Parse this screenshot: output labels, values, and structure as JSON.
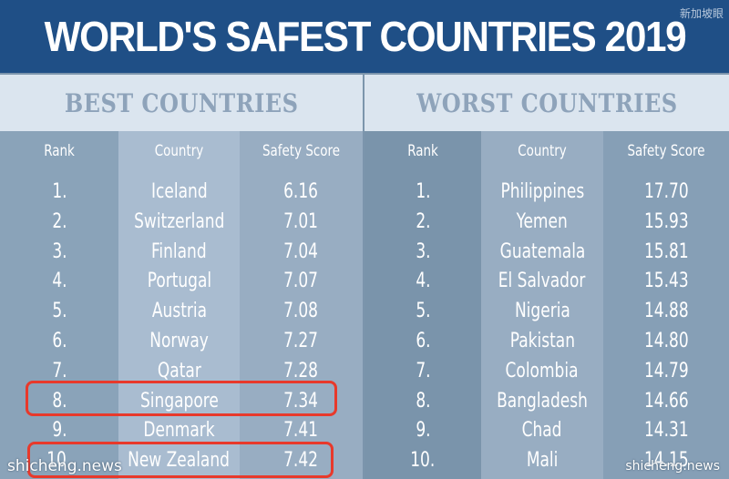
{
  "title": "WORLD'S SAFEST COUNTRIES 2019",
  "corner_watermark": "新加坡眼",
  "best": {
    "header": "BEST COUNTRIES",
    "columns": [
      "Rank",
      "Country",
      "Safety Score"
    ],
    "rows": [
      {
        "rank": "1.",
        "country": "Iceland",
        "score": "6.16"
      },
      {
        "rank": "2.",
        "country": "Switzerland",
        "score": "7.01"
      },
      {
        "rank": "3.",
        "country": "Finland",
        "score": "7.04"
      },
      {
        "rank": "4.",
        "country": "Portugal",
        "score": "7.07"
      },
      {
        "rank": "5.",
        "country": "Austria",
        "score": "7.08"
      },
      {
        "rank": "6.",
        "country": "Norway",
        "score": "7.27"
      },
      {
        "rank": "7.",
        "country": "Qatar",
        "score": "7.28"
      },
      {
        "rank": "8.",
        "country": "Singapore",
        "score": "7.34"
      },
      {
        "rank": "9.",
        "country": "Denmark",
        "score": "7.41"
      },
      {
        "rank": "10.",
        "country": "New Zealand",
        "score": "7.42"
      }
    ]
  },
  "worst": {
    "header": "WORST COUNTRIES",
    "columns": [
      "Rank",
      "Country",
      "Safety Score"
    ],
    "rows": [
      {
        "rank": "1.",
        "country": "Philippines",
        "score": "17.70"
      },
      {
        "rank": "2.",
        "country": "Yemen",
        "score": "15.93"
      },
      {
        "rank": "3.",
        "country": "Guatemala",
        "score": "15.81"
      },
      {
        "rank": "4.",
        "country": "El Salvador",
        "score": "15.43"
      },
      {
        "rank": "5.",
        "country": "Nigeria",
        "score": "14.88"
      },
      {
        "rank": "6.",
        "country": "Pakistan",
        "score": "14.80"
      },
      {
        "rank": "7.",
        "country": "Colombia",
        "score": "14.79"
      },
      {
        "rank": "8.",
        "country": "Bangladesh",
        "score": "14.66"
      },
      {
        "rank": "9.",
        "country": "Chad",
        "score": "14.31"
      },
      {
        "rank": "10.",
        "country": "Mali",
        "score": "14.15"
      }
    ]
  },
  "highlighted_best_rows": [
    "Singapore",
    "New Zealand"
  ],
  "watermark_left": "shicheng.news",
  "watermark_right": "shicheng.news",
  "colors": {
    "title_bar": "#1f4f86",
    "highlight": "#e8392b",
    "header_text": "#8ea3ba"
  }
}
